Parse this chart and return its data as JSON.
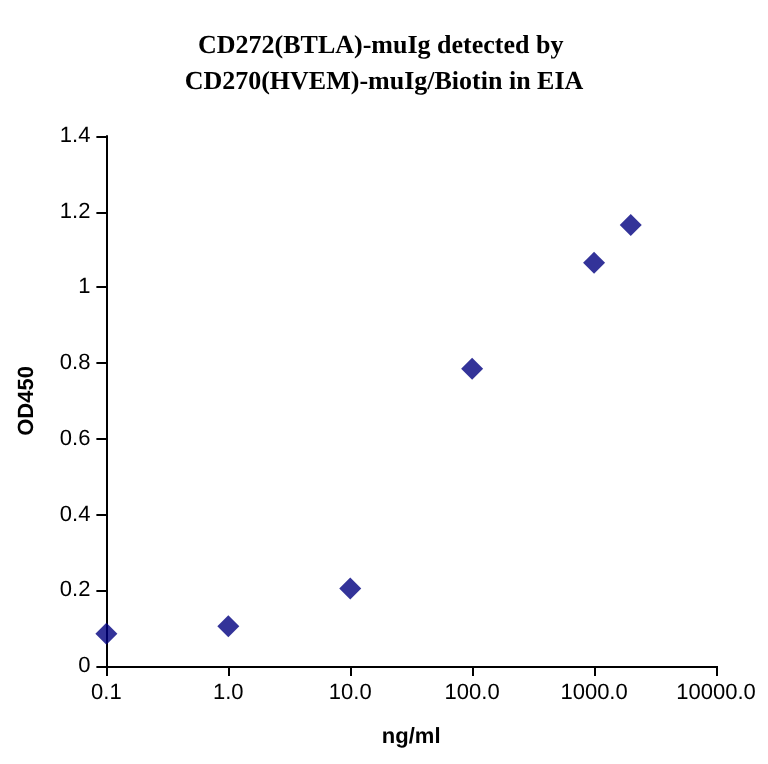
{
  "chart_data": {
    "type": "scatter",
    "title": "CD272(BTLA)-muIg detected by CD270(HVEM)-muIg/Biotin in EIA",
    "xlabel": "ng/ml",
    "ylabel": "OD450",
    "x": [
      0.1,
      1,
      10,
      100,
      1000,
      2000
    ],
    "series": [
      {
        "color": "#000080",
        "values": [
          0.085,
          0.105,
          0.205,
          0.785,
          1.065,
          1.165
        ]
      }
    ],
    "log": "x",
    "xlim": [
      0.1,
      10000
    ],
    "xticks": [
      {
        "value": 0.1,
        "label": "0.1"
      },
      {
        "value": 1,
        "label": "1.0"
      },
      {
        "value": 10,
        "label": "10.0"
      },
      {
        "value": 100,
        "label": "100.0"
      },
      {
        "value": 1000,
        "label": "1000.0"
      },
      {
        "value": 10000,
        "label": "10000.0"
      }
    ],
    "ylim": [
      0,
      1.4
    ],
    "yticks": [
      0,
      0.2,
      0.4,
      0.6,
      0.8,
      1,
      1.2,
      1.4
    ],
    "marker": "diamond"
  }
}
